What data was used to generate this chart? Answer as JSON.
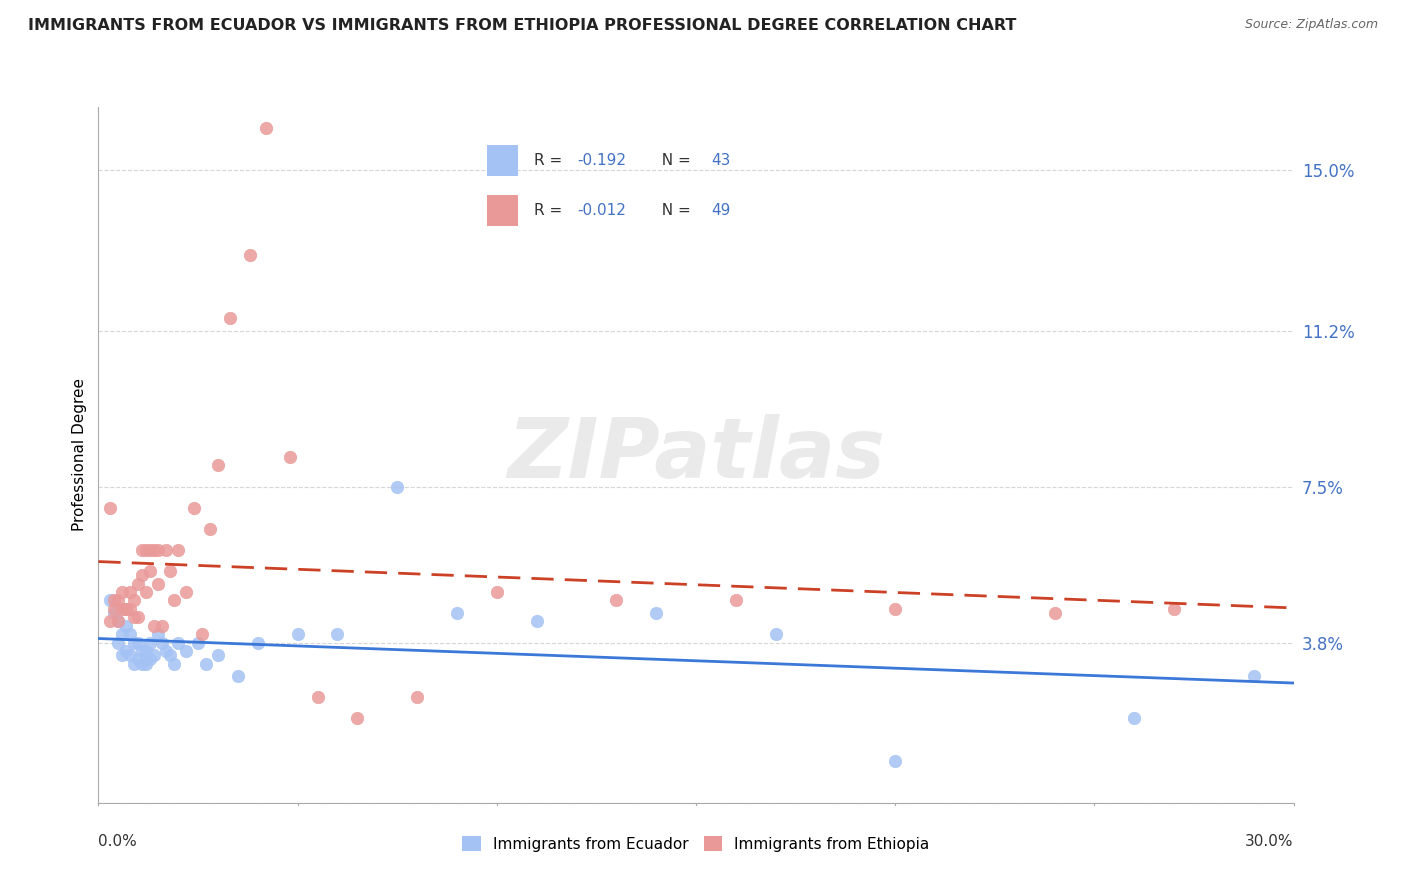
{
  "title": "IMMIGRANTS FROM ECUADOR VS IMMIGRANTS FROM ETHIOPIA PROFESSIONAL DEGREE CORRELATION CHART",
  "source": "Source: ZipAtlas.com",
  "ylabel": "Professional Degree",
  "xlim": [
    0.0,
    0.3
  ],
  "ylim": [
    0.0,
    0.165
  ],
  "ecuador_color": "#a4c2f4",
  "ethiopia_color": "#ea9999",
  "ecuador_line_color": "#3c78d8",
  "ethiopia_line_color": "#cc4125",
  "r1": "-0.192",
  "n1": "43",
  "r2": "-0.012",
  "n2": "49",
  "value_color": "#4472c4",
  "ecuador_x": [
    0.003,
    0.004,
    0.005,
    0.005,
    0.006,
    0.006,
    0.007,
    0.007,
    0.008,
    0.008,
    0.009,
    0.009,
    0.01,
    0.01,
    0.011,
    0.011,
    0.012,
    0.012,
    0.013,
    0.013,
    0.014,
    0.015,
    0.016,
    0.017,
    0.018,
    0.019,
    0.02,
    0.022,
    0.025,
    0.027,
    0.03,
    0.035,
    0.04,
    0.05,
    0.06,
    0.075,
    0.09,
    0.11,
    0.14,
    0.17,
    0.2,
    0.26,
    0.29
  ],
  "ecuador_y": [
    0.048,
    0.045,
    0.043,
    0.038,
    0.04,
    0.035,
    0.042,
    0.036,
    0.04,
    0.035,
    0.038,
    0.033,
    0.038,
    0.034,
    0.036,
    0.033,
    0.036,
    0.033,
    0.038,
    0.034,
    0.035,
    0.04,
    0.038,
    0.036,
    0.035,
    0.033,
    0.038,
    0.036,
    0.038,
    0.033,
    0.035,
    0.03,
    0.038,
    0.04,
    0.04,
    0.075,
    0.045,
    0.043,
    0.045,
    0.04,
    0.01,
    0.02,
    0.03
  ],
  "ethiopia_x": [
    0.003,
    0.004,
    0.005,
    0.006,
    0.006,
    0.007,
    0.008,
    0.008,
    0.009,
    0.009,
    0.01,
    0.01,
    0.011,
    0.011,
    0.012,
    0.012,
    0.013,
    0.013,
    0.014,
    0.014,
    0.015,
    0.015,
    0.016,
    0.017,
    0.018,
    0.019,
    0.02,
    0.022,
    0.024,
    0.026,
    0.028,
    0.03,
    0.033,
    0.038,
    0.042,
    0.048,
    0.055,
    0.065,
    0.08,
    0.1,
    0.13,
    0.16,
    0.2,
    0.24,
    0.27,
    0.003,
    0.004,
    0.005,
    0.007
  ],
  "ethiopia_y": [
    0.07,
    0.048,
    0.048,
    0.046,
    0.05,
    0.046,
    0.046,
    0.05,
    0.044,
    0.048,
    0.044,
    0.052,
    0.054,
    0.06,
    0.05,
    0.06,
    0.055,
    0.06,
    0.06,
    0.042,
    0.052,
    0.06,
    0.042,
    0.06,
    0.055,
    0.048,
    0.06,
    0.05,
    0.07,
    0.04,
    0.065,
    0.08,
    0.115,
    0.13,
    0.16,
    0.082,
    0.025,
    0.02,
    0.025,
    0.05,
    0.048,
    0.048,
    0.046,
    0.045,
    0.046,
    0.043,
    0.046,
    0.043,
    0.046
  ],
  "background_color": "#ffffff",
  "grid_color": "#cccccc",
  "watermark": "ZIPatlas",
  "title_fontsize": 11.5,
  "marker_size": 80
}
